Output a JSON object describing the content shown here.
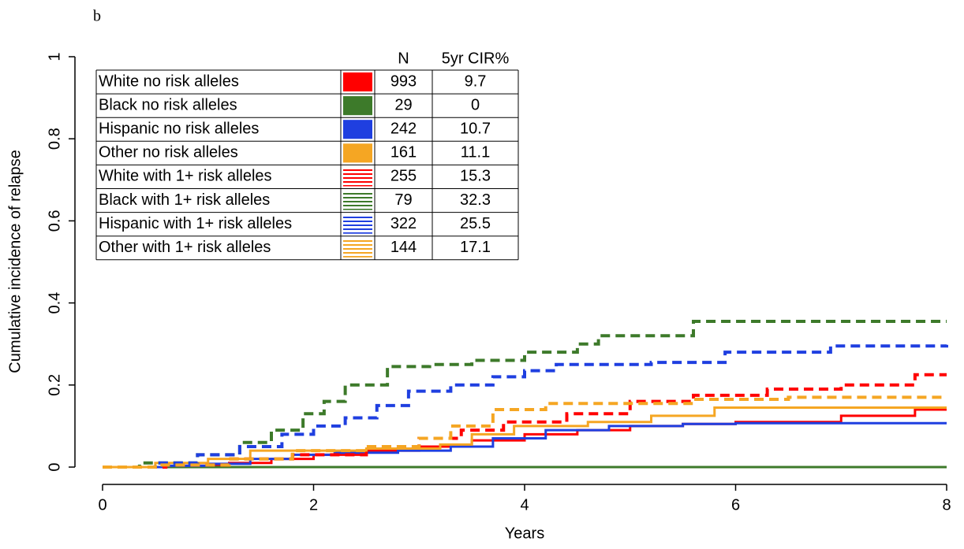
{
  "chart_data": {
    "type": "line",
    "drawstyle": "steps-post",
    "panel_label": "b",
    "xlabel": "Years",
    "ylabel": "Cumulative incidence of relapse",
    "xlim": [
      0,
      8
    ],
    "ylim": [
      0,
      1
    ],
    "xticks": [
      0,
      2,
      4,
      6,
      8
    ],
    "yticks": [
      0,
      0.2,
      0.4,
      0.6,
      0.8,
      1
    ],
    "legend_columns": [
      "N",
      "5yr CIR%"
    ],
    "series": [
      {
        "name": "White no risk alleles",
        "color": "#ff0000",
        "linestyle": "solid",
        "n": 993,
        "cir": 9.7,
        "x": [
          0,
          0.8,
          1.2,
          1.6,
          2,
          2.5,
          3,
          3.5,
          4,
          4.5,
          5,
          5.5,
          6,
          7,
          7.7,
          8
        ],
        "values": [
          0,
          0.003,
          0.01,
          0.02,
          0.03,
          0.04,
          0.05,
          0.065,
          0.08,
          0.09,
          0.1,
          0.105,
          0.11,
          0.125,
          0.14,
          0.14
        ]
      },
      {
        "name": "Black no risk alleles",
        "color": "#3d7a2a",
        "linestyle": "solid",
        "n": 29,
        "cir": 0,
        "x": [
          0,
          8
        ],
        "values": [
          0,
          0
        ]
      },
      {
        "name": "Hispanic no risk alleles",
        "color": "#1f3fe0",
        "linestyle": "solid",
        "n": 242,
        "cir": 10.7,
        "x": [
          0,
          0.6,
          1,
          1.4,
          1.8,
          2.2,
          2.8,
          3.3,
          3.7,
          4.2,
          4.8,
          5.5,
          6,
          8
        ],
        "values": [
          0,
          0.003,
          0.008,
          0.02,
          0.03,
          0.035,
          0.04,
          0.05,
          0.07,
          0.09,
          0.1,
          0.105,
          0.107,
          0.107
        ]
      },
      {
        "name": "Other no risk alleles",
        "color": "#f5a623",
        "linestyle": "solid",
        "n": 161,
        "cir": 11.1,
        "x": [
          0,
          0.5,
          1,
          1.4,
          1.8,
          2.5,
          3.2,
          3.5,
          3.9,
          4.6,
          5.2,
          5.8,
          8
        ],
        "values": [
          0,
          0.01,
          0.02,
          0.04,
          0.04,
          0.045,
          0.055,
          0.08,
          0.1,
          0.11,
          0.125,
          0.145,
          0.145
        ]
      },
      {
        "name": "White with 1+ risk alleles",
        "color": "#ff0000",
        "linestyle": "dashed",
        "n": 255,
        "cir": 15.3,
        "x": [
          0,
          0.6,
          1.2,
          1.8,
          2.5,
          3,
          3.4,
          3.8,
          4.4,
          5,
          5.6,
          6.3,
          7,
          7.7,
          8
        ],
        "values": [
          0,
          0.005,
          0.02,
          0.03,
          0.05,
          0.07,
          0.09,
          0.11,
          0.13,
          0.16,
          0.175,
          0.19,
          0.2,
          0.225,
          0.225
        ]
      },
      {
        "name": "Black with 1+ risk alleles",
        "color": "#3d7a2a",
        "linestyle": "dashed",
        "n": 79,
        "cir": 32.3,
        "x": [
          0,
          0.35,
          0.9,
          1.3,
          1.6,
          1.9,
          2.1,
          2.3,
          2.7,
          3.1,
          3.5,
          4,
          4.5,
          4.7,
          5.6,
          8
        ],
        "values": [
          0,
          0.01,
          0.03,
          0.06,
          0.09,
          0.13,
          0.16,
          0.2,
          0.245,
          0.25,
          0.26,
          0.28,
          0.3,
          0.32,
          0.355,
          0.355
        ]
      },
      {
        "name": "Hispanic with 1+ risk alleles",
        "color": "#1f3fe0",
        "linestyle": "dashed",
        "n": 322,
        "cir": 25.5,
        "x": [
          0,
          0.5,
          0.9,
          1.3,
          1.7,
          2,
          2.3,
          2.6,
          2.9,
          3.3,
          3.7,
          4,
          4.3,
          5.2,
          5.9,
          6.9,
          8
        ],
        "values": [
          0,
          0.01,
          0.03,
          0.05,
          0.08,
          0.1,
          0.12,
          0.15,
          0.185,
          0.2,
          0.22,
          0.235,
          0.25,
          0.255,
          0.28,
          0.295,
          0.298
        ]
      },
      {
        "name": "Other with 1+ risk alleles",
        "color": "#f5a623",
        "linestyle": "dashed",
        "n": 144,
        "cir": 17.1,
        "x": [
          0,
          0.5,
          1.2,
          1.8,
          2.5,
          3,
          3.3,
          3.7,
          4.2,
          4.8,
          5.6,
          6.5,
          8
        ],
        "values": [
          0,
          0.005,
          0.02,
          0.04,
          0.05,
          0.07,
          0.1,
          0.14,
          0.155,
          0.155,
          0.165,
          0.17,
          0.17
        ]
      }
    ]
  }
}
